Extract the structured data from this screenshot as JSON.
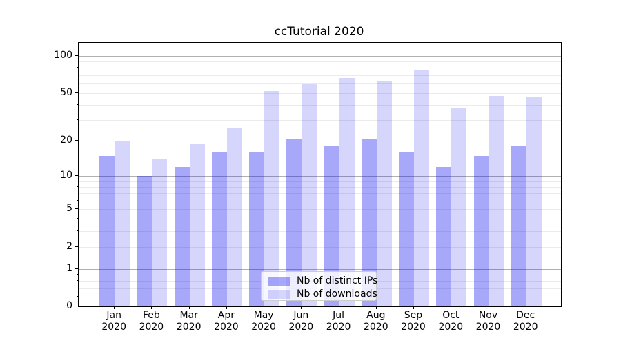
{
  "title": "ccTutorial 2020",
  "x_axis": {
    "months": [
      "Jan",
      "Feb",
      "Mar",
      "Apr",
      "May",
      "Jun",
      "Jul",
      "Aug",
      "Sep",
      "Oct",
      "Nov",
      "Dec"
    ],
    "year": "2020"
  },
  "y_axis": {
    "tick_values": [
      0,
      1,
      2,
      5,
      10,
      20,
      50,
      100
    ],
    "tick_labels": [
      "0",
      "1",
      "2",
      "5",
      "10",
      "20",
      "50",
      "100"
    ]
  },
  "legend": {
    "items": [
      {
        "label": "Nb of distinct IPs",
        "color": "rgba(0,0,240,0.34)"
      },
      {
        "label": "Nb of downloads",
        "color": "rgba(0,0,240,0.16)"
      }
    ]
  },
  "chart_data": {
    "type": "bar",
    "title": "ccTutorial 2020",
    "categories": [
      "Jan 2020",
      "Feb 2020",
      "Mar 2020",
      "Apr 2020",
      "May 2020",
      "Jun 2020",
      "Jul 2020",
      "Aug 2020",
      "Sep 2020",
      "Oct 2020",
      "Nov 2020",
      "Dec 2020"
    ],
    "series": [
      {
        "name": "Nb of distinct IPs",
        "color": "rgba(0,0,240,0.34)",
        "values": [
          15,
          10,
          12,
          16,
          16,
          21,
          18,
          21,
          16,
          12,
          15,
          18
        ]
      },
      {
        "name": "Nb of downloads",
        "color": "rgba(0,0,240,0.16)",
        "values": [
          20,
          14,
          19,
          26,
          52,
          59,
          66,
          62,
          76,
          38,
          47,
          46
        ]
      }
    ],
    "xlabel": "",
    "ylabel": "",
    "yscale": "symlog (position ~ log10(1+y))",
    "ylim": [
      0,
      127
    ],
    "yticks": [
      0,
      1,
      2,
      5,
      10,
      20,
      50,
      100
    ],
    "major_gridlines": [
      1,
      10,
      100
    ],
    "light_gridlines": [
      2,
      5,
      20,
      50
    ],
    "minor_gridlines": [
      0.2,
      0.4,
      0.6,
      0.8,
      3,
      4,
      6,
      7,
      8,
      9,
      30,
      40,
      60,
      70,
      80,
      90
    ],
    "grid": true,
    "legend_position": "lower center"
  }
}
